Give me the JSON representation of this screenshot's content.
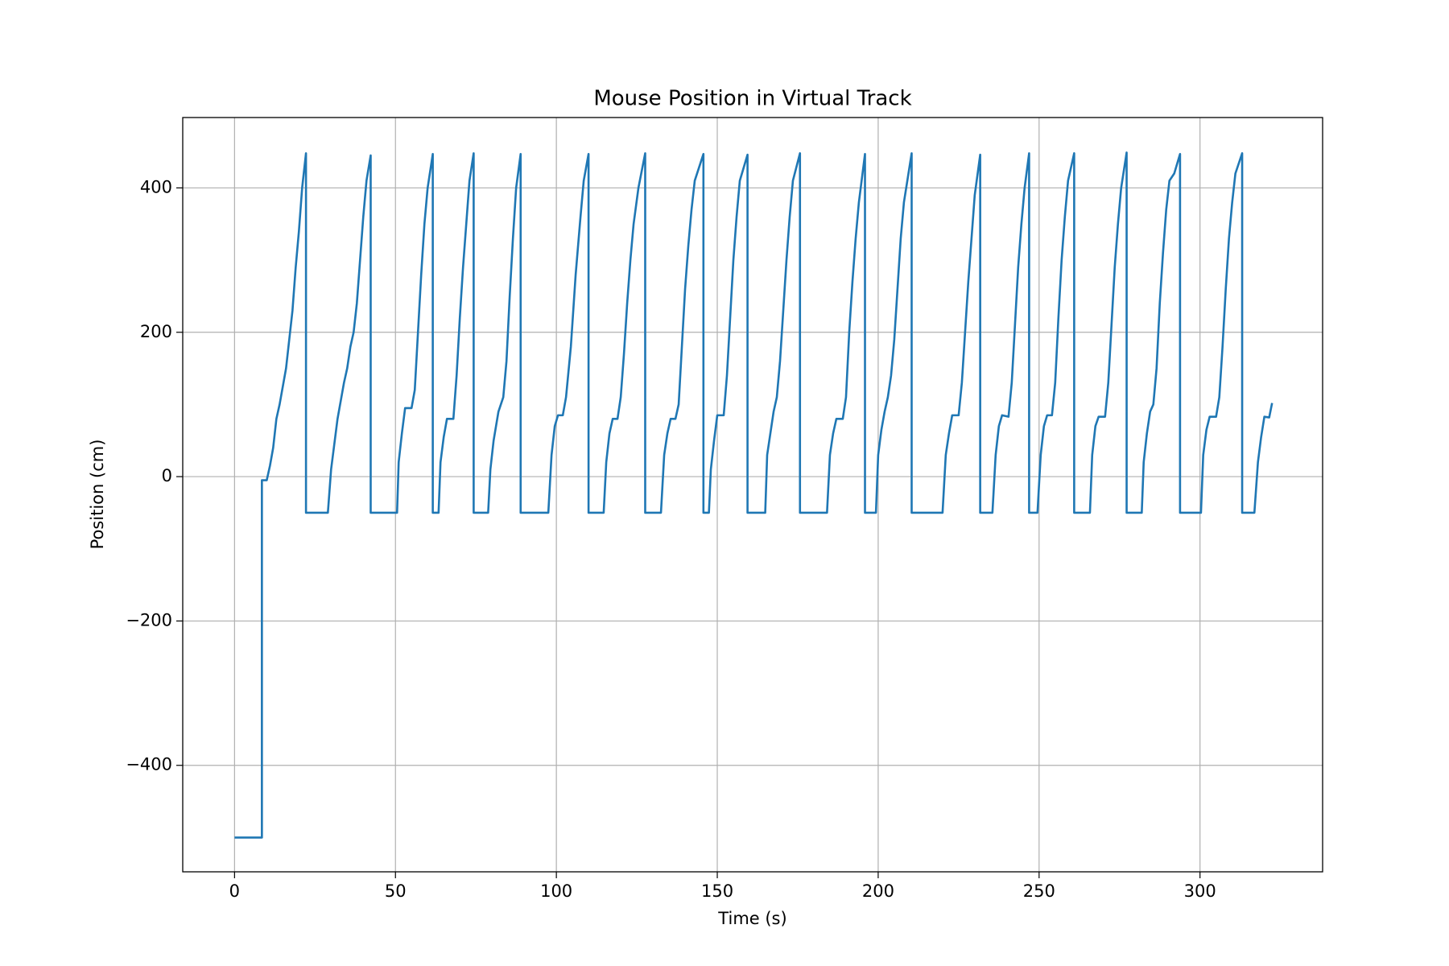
{
  "chart_data": {
    "type": "line",
    "title": "Mouse Position in Virtual Track",
    "x_label": "Time (s)",
    "y_label": "Position (cm)",
    "xlim": [
      -16.1,
      338.1
    ],
    "ylim": [
      -547.5,
      497.5
    ],
    "xticks": [
      0,
      50,
      100,
      150,
      200,
      250,
      300
    ],
    "yticks": [
      {
        "value": -400,
        "label": "−400"
      },
      {
        "value": -200,
        "label": "−200"
      },
      0,
      200,
      400
    ],
    "grid": true,
    "series": [
      {
        "color": "#1f77b4",
        "x": [
          0,
          8.5,
          8.5,
          10,
          11,
          12,
          13,
          14,
          15,
          16,
          17,
          18,
          19,
          20,
          21,
          22.2,
          22.2,
          29,
          30,
          31,
          32,
          33,
          34,
          35,
          36,
          37,
          38,
          39,
          40,
          41,
          42.3,
          42.3,
          50.5,
          51,
          52,
          53,
          55,
          56,
          57,
          58,
          59,
          60,
          61.6,
          61.6,
          63.4,
          64,
          65,
          66,
          68,
          69,
          70,
          71,
          72,
          73,
          74.3,
          74.3,
          78.8,
          79.5,
          80.5,
          82,
          83.5,
          84.5,
          85.5,
          86.5,
          87.5,
          88.9,
          88.9,
          97.5,
          98.5,
          99.5,
          100.5,
          102,
          103,
          104.5,
          106,
          107.5,
          108.5,
          110,
          110,
          114.7,
          115.5,
          116.5,
          117.5,
          119,
          120,
          121,
          122,
          123,
          124,
          125.5,
          127.6,
          127.6,
          132.5,
          133.5,
          134.5,
          135.5,
          137,
          138,
          139,
          140,
          141,
          142,
          143,
          145.7,
          145.7,
          147.4,
          148,
          149,
          150,
          152,
          153,
          154,
          155,
          156,
          157,
          159.4,
          159.4,
          164.9,
          165.5,
          166.5,
          167.5,
          168.5,
          169.5,
          170.5,
          171.5,
          172.5,
          173.5,
          175.7,
          175.7,
          184.1,
          185,
          186,
          187,
          189,
          190,
          191,
          192,
          193,
          194,
          195.9,
          195.9,
          199.3,
          200,
          201,
          202,
          203,
          204,
          205,
          206,
          207,
          208,
          210.4,
          210.4,
          220,
          221,
          222,
          223,
          225,
          226,
          227,
          228,
          229,
          230,
          231.7,
          231.7,
          235.5,
          236.5,
          237.5,
          238.5,
          240.5,
          241.5,
          242.5,
          243.5,
          244.5,
          245.5,
          246.9,
          246.9,
          249.5,
          250.5,
          251.5,
          252.5,
          254,
          255,
          256,
          257,
          258,
          259,
          260.9,
          260.9,
          265.8,
          266.5,
          267.5,
          268.5,
          270.5,
          271.5,
          272.5,
          273.5,
          274.5,
          275.5,
          277.2,
          277.2,
          281.9,
          282.5,
          283.5,
          284.5,
          285.5,
          286.5,
          287.5,
          288.5,
          289.5,
          290.5,
          292,
          293.8,
          293.8,
          300.3,
          301,
          302,
          303,
          305,
          306,
          307,
          308,
          309,
          310,
          311,
          313.1,
          313.1,
          316.9,
          318,
          319,
          320,
          321.5,
          322.4
        ],
        "values": [
          -500,
          -500,
          -5,
          -5,
          15,
          40,
          80,
          100,
          125,
          150,
          190,
          230,
          290,
          340,
          400,
          448,
          -50,
          -50,
          10,
          45,
          80,
          105,
          130,
          150,
          180,
          200,
          240,
          300,
          360,
          410,
          445,
          -50,
          -50,
          20,
          60,
          95,
          95,
          120,
          200,
          280,
          350,
          400,
          447,
          -50,
          -50,
          20,
          55,
          80,
          80,
          140,
          220,
          290,
          350,
          410,
          448,
          -50,
          -50,
          10,
          50,
          90,
          110,
          160,
          250,
          330,
          400,
          447,
          -50,
          -50,
          30,
          70,
          85,
          85,
          110,
          180,
          280,
          360,
          410,
          447,
          -50,
          -50,
          20,
          60,
          80,
          80,
          110,
          170,
          240,
          300,
          350,
          400,
          448,
          -50,
          -50,
          30,
          60,
          80,
          80,
          100,
          180,
          260,
          320,
          370,
          410,
          447,
          -50,
          -50,
          10,
          50,
          85,
          85,
          140,
          220,
          300,
          360,
          410,
          446,
          -50,
          -50,
          30,
          60,
          90,
          110,
          160,
          230,
          300,
          360,
          410,
          448,
          -50,
          -50,
          30,
          60,
          80,
          80,
          110,
          200,
          270,
          330,
          380,
          447,
          -50,
          -50,
          30,
          65,
          90,
          110,
          140,
          190,
          260,
          330,
          380,
          448,
          -50,
          -50,
          30,
          60,
          85,
          85,
          130,
          200,
          270,
          330,
          390,
          446,
          -50,
          -50,
          30,
          70,
          85,
          83,
          130,
          210,
          290,
          350,
          400,
          448,
          -50,
          -50,
          30,
          70,
          85,
          85,
          130,
          220,
          300,
          360,
          410,
          448,
          -50,
          -50,
          30,
          70,
          83,
          83,
          130,
          210,
          290,
          350,
          400,
          449,
          -50,
          -50,
          20,
          60,
          90,
          100,
          150,
          240,
          310,
          370,
          410,
          420,
          447,
          -50,
          -50,
          30,
          65,
          83,
          83,
          110,
          180,
          260,
          330,
          380,
          420,
          448,
          -50,
          -50,
          20,
          55,
          83,
          82,
          102
        ]
      }
    ]
  }
}
